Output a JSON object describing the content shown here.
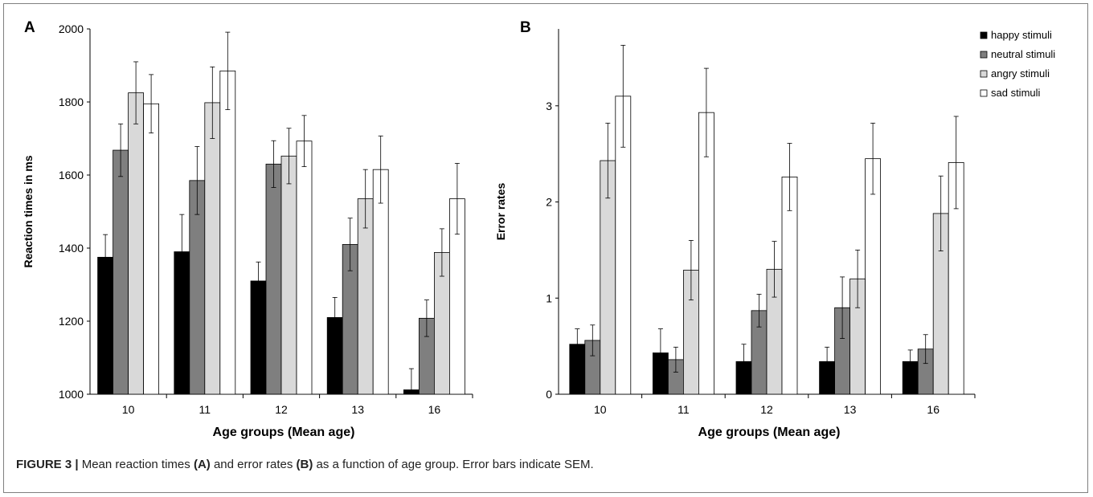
{
  "caption": {
    "figure_label": "FIGURE 3 |",
    "part1": " Mean reaction times ",
    "ref_a": "(A)",
    "part2": " and error rates ",
    "ref_b": "(B)",
    "part3": " as a function of age group. Error bars indicate SEM."
  },
  "legend": [
    {
      "name": "happy stimuli",
      "color": "#000000"
    },
    {
      "name": "neutral stimuli",
      "color": "#7f7f7f"
    },
    {
      "name": "angry stimuli",
      "color": "#d9d9d9"
    },
    {
      "name": "sad stimuli",
      "color": "#ffffff"
    }
  ],
  "chart_data": [
    {
      "panel": "A",
      "type": "bar",
      "xlabel": "Age groups (Mean age)",
      "ylabel": "Reaction times in ms",
      "ylim": [
        1000,
        2000
      ],
      "yticks": [
        1000,
        1200,
        1400,
        1600,
        1800,
        2000
      ],
      "grid": false,
      "categories": [
        "10",
        "11",
        "12",
        "13",
        "16"
      ],
      "series": [
        {
          "name": "happy stimuli",
          "values": [
            1375,
            1390,
            1310,
            1210,
            1012
          ],
          "errors": [
            62,
            102,
            52,
            55,
            58
          ]
        },
        {
          "name": "neutral stimuli",
          "values": [
            1668,
            1585,
            1630,
            1410,
            1208
          ],
          "errors": [
            72,
            93,
            64,
            72,
            50
          ]
        },
        {
          "name": "angry stimuli",
          "values": [
            1825,
            1798,
            1652,
            1535,
            1388
          ],
          "errors": [
            85,
            98,
            76,
            80,
            65
          ]
        },
        {
          "name": "sad stimuli",
          "values": [
            1795,
            1885,
            1693,
            1615,
            1535
          ],
          "errors": [
            80,
            106,
            70,
            92,
            97
          ]
        }
      ]
    },
    {
      "panel": "B",
      "type": "bar",
      "xlabel": "Age groups (Mean age)",
      "ylabel": "Error rates",
      "ylim": [
        0,
        3.8
      ],
      "yticks": [
        0,
        1,
        2,
        3
      ],
      "grid": false,
      "legend_position": "top-right",
      "categories": [
        "10",
        "11",
        "12",
        "13",
        "16"
      ],
      "series": [
        {
          "name": "happy stimuli",
          "values": [
            0.52,
            0.43,
            0.34,
            0.34,
            0.34
          ],
          "errors": [
            0.16,
            0.25,
            0.18,
            0.15,
            0.12
          ]
        },
        {
          "name": "neutral stimuli",
          "values": [
            0.56,
            0.36,
            0.87,
            0.9,
            0.47
          ],
          "errors": [
            0.16,
            0.13,
            0.17,
            0.32,
            0.15
          ]
        },
        {
          "name": "angry stimuli",
          "values": [
            2.43,
            1.29,
            1.3,
            1.2,
            1.88
          ],
          "errors": [
            0.39,
            0.31,
            0.29,
            0.3,
            0.39
          ]
        },
        {
          "name": "sad stimuli",
          "values": [
            3.1,
            2.93,
            2.26,
            2.45,
            2.41
          ],
          "errors": [
            0.53,
            0.46,
            0.35,
            0.37,
            0.48
          ]
        }
      ]
    }
  ]
}
